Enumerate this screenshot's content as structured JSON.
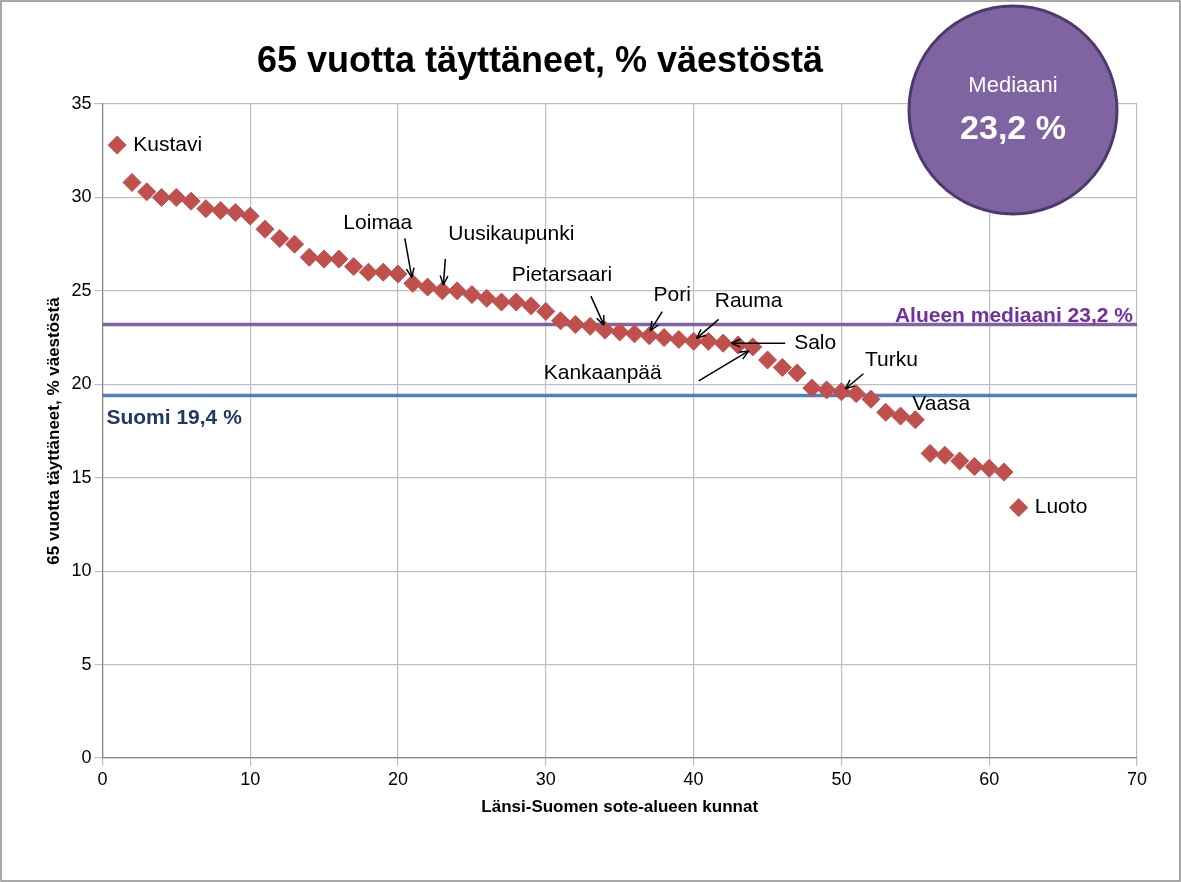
{
  "chart_data": {
    "type": "scatter",
    "title": "65 vuotta täyttäneet, % väestöstä",
    "x_label": "Länsi-Suomen sote-alueen kunnat",
    "y_label": "65 vuotta täyttäneet, % väestöstä",
    "x": [
      1,
      2,
      3,
      4,
      5,
      6,
      7,
      8,
      9,
      10,
      11,
      12,
      13,
      14,
      15,
      16,
      17,
      18,
      19,
      20,
      21,
      22,
      23,
      24,
      25,
      26,
      27,
      28,
      29,
      30,
      31,
      32,
      33,
      34,
      35,
      36,
      37,
      38,
      39,
      40,
      41,
      42,
      43,
      44,
      45,
      46,
      47,
      48,
      49,
      50,
      51,
      52,
      53,
      54,
      55,
      56,
      57,
      58,
      59,
      60,
      61,
      62
    ],
    "values": [
      32.8,
      30.8,
      30.3,
      30.0,
      30.0,
      29.8,
      29.4,
      29.3,
      29.2,
      29.0,
      28.3,
      27.8,
      27.5,
      26.8,
      26.7,
      26.7,
      26.3,
      26.0,
      26.0,
      25.9,
      25.4,
      25.2,
      25.0,
      25.0,
      24.8,
      24.6,
      24.4,
      24.4,
      24.2,
      23.9,
      23.4,
      23.2,
      23.1,
      22.9,
      22.8,
      22.7,
      22.6,
      22.5,
      22.4,
      22.3,
      22.3,
      22.2,
      22.1,
      22.0,
      21.3,
      20.9,
      20.6,
      19.8,
      19.7,
      19.6,
      19.5,
      19.2,
      18.5,
      18.3,
      18.1,
      16.3,
      16.2,
      15.9,
      15.6,
      15.5,
      15.3,
      13.4
    ],
    "color": "#c0504d",
    "marker": "diamond",
    "xlim": [
      0,
      70
    ],
    "xticks": [
      0,
      10,
      20,
      30,
      40,
      50,
      60,
      70
    ],
    "ylim": [
      0,
      35
    ],
    "yticks": [
      0,
      5,
      10,
      15,
      20,
      25,
      30,
      35
    ],
    "grid": true,
    "annotations": [
      {
        "text": "Kustavi",
        "x": 1,
        "y": 32.8
      },
      {
        "text": "Loimaa",
        "x": 21,
        "y": 25.4
      },
      {
        "text": "Uusikaupunki",
        "x": 23,
        "y": 25.0
      },
      {
        "text": "Pietarsaari",
        "x": 34,
        "y": 22.9
      },
      {
        "text": "Pori",
        "x": 37,
        "y": 22.6
      },
      {
        "text": "Rauma",
        "x": 40,
        "y": 22.3
      },
      {
        "text": "Kankaanpää",
        "x": 44,
        "y": 22.0
      },
      {
        "text": "Salo",
        "x": 42,
        "y": 22.2
      },
      {
        "text": "Turku",
        "x": 50,
        "y": 19.6
      },
      {
        "text": "Vaasa",
        "x": 55,
        "y": 18.1
      },
      {
        "text": "Luoto",
        "x": 62,
        "y": 13.4
      }
    ],
    "reference_lines": [
      {
        "text": "Alueen mediaani 23,2 %",
        "value": 23.2,
        "color": "#8064a2"
      },
      {
        "text": "Suomi 19,4 %",
        "value": 19.4,
        "color": "#4f81bd"
      }
    ],
    "callout": {
      "label": "Mediaani",
      "text": "23,2 %",
      "color": "#8064a2"
    }
  }
}
